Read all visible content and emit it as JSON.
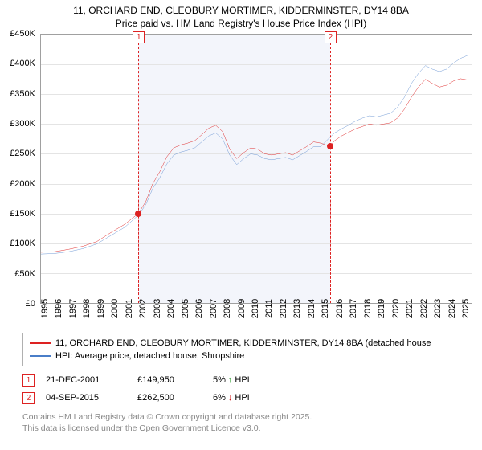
{
  "title": {
    "line1": "11, ORCHARD END, CLEOBURY MORTIMER, KIDDERMINSTER, DY14 8BA",
    "line2": "Price paid vs. HM Land Registry's House Price Index (HPI)"
  },
  "chart": {
    "type": "line",
    "background_color": "#ffffff",
    "plot_border_color": "#a0a0a0",
    "grid_color": "#e4e4e4",
    "font_size_axis": 11,
    "y": {
      "min": 0,
      "max": 450000,
      "tick_step": 50000,
      "ticks": [
        "£0",
        "£50K",
        "£100K",
        "£150K",
        "£200K",
        "£250K",
        "£300K",
        "£350K",
        "£400K",
        "£450K"
      ]
    },
    "x": {
      "min": 1995,
      "max": 2025.8,
      "ticks": [
        1995,
        1996,
        1997,
        1998,
        1999,
        2000,
        2001,
        2002,
        2003,
        2004,
        2005,
        2006,
        2007,
        2008,
        2009,
        2010,
        2011,
        2012,
        2013,
        2014,
        2015,
        2016,
        2017,
        2018,
        2019,
        2020,
        2021,
        2022,
        2023,
        2024,
        2025
      ]
    },
    "shaded_band": {
      "from": 2001.97,
      "to": 2015.68,
      "color": "#f3f5fb"
    },
    "markers": [
      {
        "id": "1",
        "x": 2001.97,
        "y": 149950,
        "line_color": "#dd2222",
        "box_color": "#dd2222",
        "dot_color": "#dd2222"
      },
      {
        "id": "2",
        "x": 2015.68,
        "y": 262500,
        "line_color": "#dd2222",
        "box_color": "#dd2222",
        "dot_color": "#dd2222"
      }
    ],
    "series": [
      {
        "name": "property",
        "label": "11, ORCHARD END, CLEOBURY MORTIMER, KIDDERMINSTER, DY14 8BA (detached house",
        "color": "#dd2222",
        "line_width": 1.6,
        "data": [
          [
            1995,
            85000
          ],
          [
            1996,
            86000
          ],
          [
            1997,
            90000
          ],
          [
            1998,
            95000
          ],
          [
            1999,
            103000
          ],
          [
            2000,
            118000
          ],
          [
            2001,
            132000
          ],
          [
            2001.97,
            149950
          ],
          [
            2002.5,
            170000
          ],
          [
            2003,
            200000
          ],
          [
            2003.5,
            220000
          ],
          [
            2004,
            245000
          ],
          [
            2004.5,
            260000
          ],
          [
            2005,
            265000
          ],
          [
            2005.5,
            268000
          ],
          [
            2006,
            272000
          ],
          [
            2006.5,
            282000
          ],
          [
            2007,
            293000
          ],
          [
            2007.5,
            298000
          ],
          [
            2008,
            287000
          ],
          [
            2008.5,
            258000
          ],
          [
            2009,
            242000
          ],
          [
            2009.5,
            252000
          ],
          [
            2010,
            260000
          ],
          [
            2010.5,
            258000
          ],
          [
            2011,
            250000
          ],
          [
            2011.5,
            248000
          ],
          [
            2012,
            250000
          ],
          [
            2012.5,
            252000
          ],
          [
            2013,
            248000
          ],
          [
            2013.5,
            255000
          ],
          [
            2014,
            262000
          ],
          [
            2014.5,
            270000
          ],
          [
            2015,
            268000
          ],
          [
            2015.68,
            262500
          ],
          [
            2016,
            272000
          ],
          [
            2016.5,
            280000
          ],
          [
            2017,
            286000
          ],
          [
            2017.5,
            292000
          ],
          [
            2018,
            296000
          ],
          [
            2018.5,
            300000
          ],
          [
            2019,
            298000
          ],
          [
            2019.5,
            300000
          ],
          [
            2020,
            302000
          ],
          [
            2020.5,
            310000
          ],
          [
            2021,
            325000
          ],
          [
            2021.5,
            345000
          ],
          [
            2022,
            362000
          ],
          [
            2022.5,
            375000
          ],
          [
            2023,
            368000
          ],
          [
            2023.5,
            362000
          ],
          [
            2024,
            365000
          ],
          [
            2024.5,
            372000
          ],
          [
            2025,
            376000
          ],
          [
            2025.5,
            374000
          ]
        ]
      },
      {
        "name": "hpi",
        "label": "HPI: Average price, detached house, Shropshire",
        "color": "#4a7ec8",
        "line_width": 1.3,
        "data": [
          [
            1995,
            82000
          ],
          [
            1996,
            83000
          ],
          [
            1997,
            86000
          ],
          [
            1998,
            91000
          ],
          [
            1999,
            99000
          ],
          [
            2000,
            113000
          ],
          [
            2001,
            127000
          ],
          [
            2002,
            148000
          ],
          [
            2002.5,
            165000
          ],
          [
            2003,
            192000
          ],
          [
            2003.5,
            210000
          ],
          [
            2004,
            233000
          ],
          [
            2004.5,
            248000
          ],
          [
            2005,
            253000
          ],
          [
            2005.5,
            256000
          ],
          [
            2006,
            260000
          ],
          [
            2006.5,
            270000
          ],
          [
            2007,
            280000
          ],
          [
            2007.5,
            285000
          ],
          [
            2008,
            275000
          ],
          [
            2008.5,
            248000
          ],
          [
            2009,
            232000
          ],
          [
            2009.5,
            242000
          ],
          [
            2010,
            250000
          ],
          [
            2010.5,
            248000
          ],
          [
            2011,
            242000
          ],
          [
            2011.5,
            240000
          ],
          [
            2012,
            242000
          ],
          [
            2012.5,
            244000
          ],
          [
            2013,
            240000
          ],
          [
            2013.5,
            247000
          ],
          [
            2014,
            254000
          ],
          [
            2014.5,
            262000
          ],
          [
            2015,
            262000
          ],
          [
            2015.68,
            278000
          ],
          [
            2016,
            285000
          ],
          [
            2016.5,
            292000
          ],
          [
            2017,
            298000
          ],
          [
            2017.5,
            305000
          ],
          [
            2018,
            310000
          ],
          [
            2018.5,
            314000
          ],
          [
            2019,
            312000
          ],
          [
            2019.5,
            315000
          ],
          [
            2020,
            318000
          ],
          [
            2020.5,
            328000
          ],
          [
            2021,
            345000
          ],
          [
            2021.5,
            368000
          ],
          [
            2022,
            385000
          ],
          [
            2022.5,
            398000
          ],
          [
            2023,
            392000
          ],
          [
            2023.5,
            388000
          ],
          [
            2024,
            392000
          ],
          [
            2024.5,
            402000
          ],
          [
            2025,
            410000
          ],
          [
            2025.5,
            415000
          ]
        ]
      }
    ]
  },
  "legend": {
    "border_color": "#b0b0b0",
    "items": [
      {
        "color": "#dd2222",
        "label": "11, ORCHARD END, CLEOBURY MORTIMER, KIDDERMINSTER, DY14 8BA (detached house"
      },
      {
        "color": "#4a7ec8",
        "label": "HPI: Average price, detached house, Shropshire"
      }
    ]
  },
  "markers_table": {
    "rows": [
      {
        "id": "1",
        "box_color": "#dd2222",
        "date": "21-DEC-2001",
        "price": "£149,950",
        "pct": "5%",
        "arrow": "↑",
        "arrow_color": "#008800",
        "suffix": "HPI"
      },
      {
        "id": "2",
        "box_color": "#dd2222",
        "date": "04-SEP-2015",
        "price": "£262,500",
        "pct": "6%",
        "arrow": "↓",
        "arrow_color": "#cc0000",
        "suffix": "HPI"
      }
    ]
  },
  "attribution": {
    "line1": "Contains HM Land Registry data © Crown copyright and database right 2025.",
    "line2": "This data is licensed under the Open Government Licence v3.0."
  }
}
